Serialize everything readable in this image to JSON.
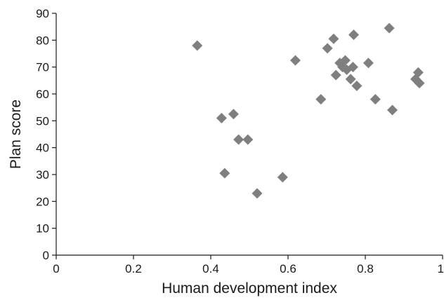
{
  "chart_data": {
    "type": "scatter",
    "title": "",
    "xlabel": "Human development index",
    "ylabel": "Plan score",
    "xlim": [
      0,
      1
    ],
    "ylim": [
      0,
      90
    ],
    "xticks": [
      0,
      0.2,
      0.4,
      0.6,
      0.8,
      1
    ],
    "xtick_labels": [
      "0",
      "0.2",
      "0.4",
      "0.6",
      "0.8",
      "1"
    ],
    "yticks": [
      0,
      10,
      20,
      30,
      40,
      50,
      60,
      70,
      80,
      90
    ],
    "ytick_labels": [
      "0",
      "10",
      "20",
      "30",
      "40",
      "50",
      "60",
      "70",
      "80",
      "90"
    ],
    "grid": false,
    "legend": "none",
    "marker": "diamond",
    "marker_color": "#7f7f7f",
    "series": [
      {
        "points": [
          {
            "x": 0.365,
            "y": 78
          },
          {
            "x": 0.428,
            "y": 51
          },
          {
            "x": 0.436,
            "y": 30.5
          },
          {
            "x": 0.459,
            "y": 52.5
          },
          {
            "x": 0.472,
            "y": 43
          },
          {
            "x": 0.496,
            "y": 43
          },
          {
            "x": 0.52,
            "y": 23
          },
          {
            "x": 0.586,
            "y": 29
          },
          {
            "x": 0.619,
            "y": 72.5
          },
          {
            "x": 0.685,
            "y": 58
          },
          {
            "x": 0.702,
            "y": 77
          },
          {
            "x": 0.718,
            "y": 80.5
          },
          {
            "x": 0.724,
            "y": 67
          },
          {
            "x": 0.734,
            "y": 71.5
          },
          {
            "x": 0.741,
            "y": 70
          },
          {
            "x": 0.748,
            "y": 72.5
          },
          {
            "x": 0.752,
            "y": 69
          },
          {
            "x": 0.762,
            "y": 65.5
          },
          {
            "x": 0.768,
            "y": 70
          },
          {
            "x": 0.77,
            "y": 82
          },
          {
            "x": 0.778,
            "y": 63
          },
          {
            "x": 0.808,
            "y": 71.5
          },
          {
            "x": 0.826,
            "y": 58
          },
          {
            "x": 0.862,
            "y": 84.5
          },
          {
            "x": 0.87,
            "y": 54
          },
          {
            "x": 0.93,
            "y": 65.5
          },
          {
            "x": 0.937,
            "y": 68
          },
          {
            "x": 0.94,
            "y": 64
          }
        ]
      }
    ]
  }
}
